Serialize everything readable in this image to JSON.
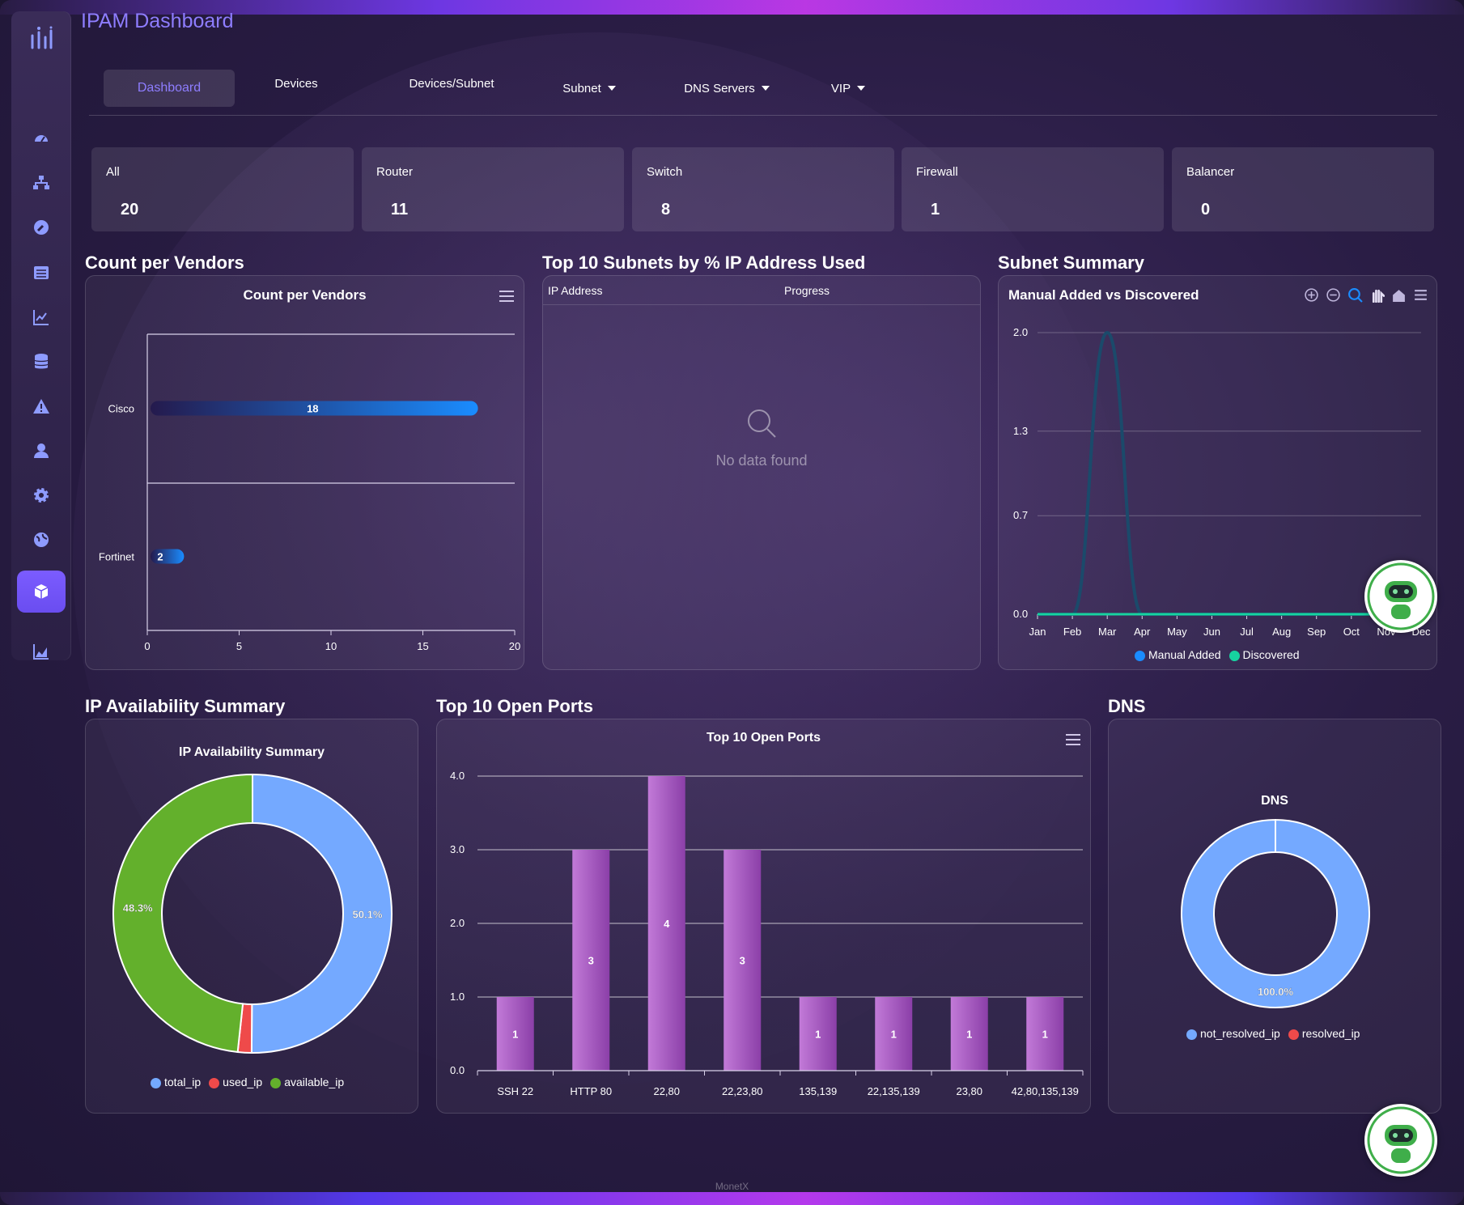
{
  "app": {
    "title": "IPAM Dashboard",
    "footer": "MonetX"
  },
  "nav": [
    {
      "label": "Dashboard",
      "active": true,
      "dropdown": false
    },
    {
      "label": "Devices",
      "active": false,
      "dropdown": false
    },
    {
      "label": "Devices/Subnet",
      "active": false,
      "dropdown": false
    },
    {
      "label": "Subnet",
      "active": false,
      "dropdown": true
    },
    {
      "label": "DNS Servers",
      "active": false,
      "dropdown": true
    },
    {
      "label": "VIP",
      "active": false,
      "dropdown": true
    }
  ],
  "sidebar": {
    "icons": [
      "dashboard-icon",
      "sitemap-icon",
      "wrench-icon",
      "list-icon",
      "line-chart-icon",
      "database-icon",
      "alert-icon",
      "user-icon",
      "gear-icon",
      "globe-icon",
      "cube-icon",
      "area-chart-icon"
    ],
    "active": "cube-icon"
  },
  "cards": [
    {
      "label": "All",
      "value": "20"
    },
    {
      "label": "Router",
      "value": "11"
    },
    {
      "label": "Switch",
      "value": "8"
    },
    {
      "label": "Firewall",
      "value": "1"
    },
    {
      "label": "Balancer",
      "value": "0"
    }
  ],
  "vendors": {
    "section_title": "Count per Vendors",
    "chart_data": {
      "type": "bar",
      "orientation": "horizontal",
      "title": "Count per Vendors",
      "categories": [
        "Cisco",
        "Fortinet"
      ],
      "values": [
        18,
        2
      ],
      "xlim": [
        0,
        20
      ],
      "xticks": [
        0,
        5,
        10,
        15,
        20
      ]
    }
  },
  "subnets": {
    "section_title": "Top 10 Subnets by % IP Address Used",
    "columns": [
      "IP Address",
      "Progress"
    ],
    "empty_text": "No data found"
  },
  "subnet_summary": {
    "section_title": "Subnet Summary",
    "chart_data": {
      "type": "line",
      "title": "Manual Added vs Discovered",
      "x": [
        "Jan",
        "Feb",
        "Mar",
        "Apr",
        "May",
        "Jun",
        "Jul",
        "Aug",
        "Sep",
        "Oct",
        "Nov",
        "Dec"
      ],
      "series": [
        {
          "name": "Manual Added",
          "color": "#1a8cff",
          "values": [
            0,
            0,
            2,
            0,
            0,
            0,
            0,
            0,
            0,
            0,
            0,
            0
          ]
        },
        {
          "name": "Discovered",
          "color": "#17d3a0",
          "values": [
            0,
            0,
            0,
            0,
            0,
            0,
            0,
            0,
            0,
            0,
            0,
            0
          ]
        }
      ],
      "yticks": [
        "0.0",
        "0.7",
        "1.3",
        "2.0"
      ],
      "ylim": [
        0,
        2
      ]
    },
    "toolbar": [
      "zoom-in-icon",
      "zoom-out-icon",
      "magnify-icon",
      "pan-icon",
      "home-icon",
      "menu-icon"
    ]
  },
  "ip_availability": {
    "section_title": "IP Availability Summary",
    "chart_data": {
      "type": "pie",
      "title": "IP Availability Summary",
      "slices": [
        {
          "name": "total_ip",
          "value": 50.1,
          "label": "50.1%",
          "color": "#74a9ff"
        },
        {
          "name": "used_ip",
          "value": 1.6,
          "label": "",
          "color": "#ef4a4a"
        },
        {
          "name": "available_ip",
          "value": 48.3,
          "label": "48.3%",
          "color": "#63b02c"
        }
      ]
    }
  },
  "open_ports": {
    "section_title": "Top 10 Open Ports",
    "chart_data": {
      "type": "bar",
      "title": "Top 10 Open Ports",
      "categories": [
        "SSH 22",
        "HTTP 80",
        "22,80",
        "22,23,80",
        "135,139",
        "22,135,139",
        "23,80",
        "42,80,135,139"
      ],
      "values": [
        1,
        3,
        4,
        3,
        1,
        1,
        1,
        1
      ],
      "yticks": [
        "0.0",
        "1.0",
        "2.0",
        "3.0",
        "4.0"
      ],
      "ylim": [
        0,
        4
      ]
    }
  },
  "dns": {
    "section_title": "DNS",
    "chart_data": {
      "type": "pie",
      "title": "DNS",
      "slices": [
        {
          "name": "not_resolved_ip",
          "value": 100,
          "label": "100.0%",
          "color": "#74a9ff"
        },
        {
          "name": "resolved_ip",
          "value": 0,
          "label": "",
          "color": "#ef4a4a"
        }
      ]
    }
  }
}
